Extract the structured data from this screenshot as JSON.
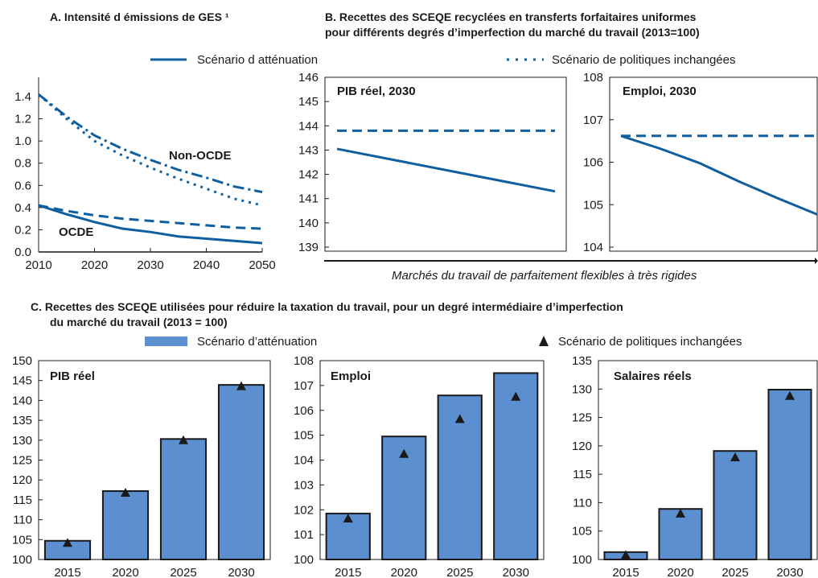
{
  "panel_a": {
    "title": "A. Intensité d émissions de GES ¹",
    "label_non_ocde": "Non-OCDE",
    "label_ocde": "OCDE"
  },
  "panel_b": {
    "title_line1": "B. Recettes des SCEQE recyclées en transferts forfaitaires uniformes",
    "title_line2": "pour différents degrés d’imperfection du marché du travail (2013=100)",
    "axis_caption": "Marchés du travail de parfaitement flexibles à très rigides"
  },
  "legend_top": {
    "mitigation": "Scénario d atténuation",
    "baseline": "Scénario de politiques inchangées"
  },
  "panel_c": {
    "title_line1": "C. Recettes des SCEQE  utilisées pour réduire la taxation du travail, pour un degré intermédiaire d’imperfection",
    "title_line2": "du marché du travail (2013 = 100)",
    "legend_mitigation": "Scénario d’atténuation",
    "legend_baseline": "Scénario de politiques inchangées"
  },
  "colors": {
    "series": "#0f5fa0",
    "bar": "#5b8fcf"
  },
  "chart_data": [
    {
      "id": "A",
      "type": "line",
      "xlim": [
        2010,
        2050
      ],
      "ylim": [
        0,
        1.4
      ],
      "xticks": [
        2010,
        2020,
        2030,
        2040,
        2050
      ],
      "yticks": [
        "0.0",
        "0.2",
        "0.4",
        "0.6",
        "0.8",
        "1.0",
        "1.2",
        "1.4"
      ],
      "x": [
        2010,
        2015,
        2020,
        2025,
        2030,
        2035,
        2040,
        2045,
        2050
      ],
      "series": [
        {
          "group": "Non-OCDE",
          "style": "dashdot",
          "values": [
            1.42,
            1.22,
            1.05,
            0.93,
            0.83,
            0.74,
            0.67,
            0.59,
            0.54
          ]
        },
        {
          "group": "Non-OCDE",
          "style": "dotted",
          "values": [
            1.42,
            1.2,
            1.0,
            0.87,
            0.76,
            0.66,
            0.57,
            0.48,
            0.42
          ]
        },
        {
          "group": "OCDE",
          "style": "dashed",
          "values": [
            0.42,
            0.37,
            0.33,
            0.3,
            0.28,
            0.26,
            0.24,
            0.22,
            0.21
          ]
        },
        {
          "group": "OCDE",
          "style": "solid",
          "values": [
            0.42,
            0.34,
            0.27,
            0.21,
            0.18,
            0.14,
            0.12,
            0.1,
            0.08
          ]
        }
      ]
    },
    {
      "id": "B1",
      "type": "line",
      "label": "PIB réel, 2030",
      "ylim": [
        139,
        146
      ],
      "yticks": [
        "139",
        "140",
        "141",
        "142",
        "143",
        "144",
        "145",
        "146"
      ],
      "x": [
        0,
        1
      ],
      "series": [
        {
          "style": "dashed",
          "values": [
            143.8,
            143.8
          ]
        },
        {
          "style": "solid",
          "values": [
            143.05,
            141.3
          ]
        }
      ]
    },
    {
      "id": "B2",
      "type": "line",
      "label": "Emploi, 2030",
      "ylim": [
        104,
        108
      ],
      "yticks": [
        "104",
        "105",
        "106",
        "107",
        "108"
      ],
      "x": [
        0,
        0.2,
        0.4,
        0.6,
        0.8,
        1.0
      ],
      "series": [
        {
          "style": "dashed",
          "values": [
            106.62,
            106.62,
            106.62,
            106.62,
            106.62,
            106.62
          ]
        },
        {
          "style": "solid",
          "values": [
            106.62,
            106.32,
            105.98,
            105.55,
            105.15,
            104.77
          ]
        }
      ]
    },
    {
      "id": "C1",
      "type": "bar",
      "label": "PIB réel",
      "categories": [
        "2015",
        "2020",
        "2025",
        "2030"
      ],
      "ylim": [
        100,
        150
      ],
      "yticks": [
        "100",
        "105",
        "110",
        "115",
        "120",
        "125",
        "130",
        "135",
        "140",
        "145",
        "150"
      ],
      "values": [
        104.7,
        117.2,
        130.3,
        143.9
      ],
      "markers": [
        104.2,
        116.8,
        130.0,
        143.6
      ]
    },
    {
      "id": "C2",
      "type": "bar",
      "label": "Emploi",
      "categories": [
        "2015",
        "2020",
        "2025",
        "2030"
      ],
      "ylim": [
        100,
        108
      ],
      "yticks": [
        "100",
        "101",
        "102",
        "103",
        "104",
        "105",
        "106",
        "107",
        "108"
      ],
      "values": [
        101.85,
        104.95,
        106.6,
        107.5
      ],
      "markers": [
        101.65,
        104.25,
        105.65,
        106.55
      ]
    },
    {
      "id": "C3",
      "type": "bar",
      "label": "Salaires réels",
      "categories": [
        "2015",
        "2020",
        "2025",
        "2030"
      ],
      "ylim": [
        100,
        135
      ],
      "yticks": [
        "100",
        "105",
        "110",
        "115",
        "120",
        "125",
        "130",
        "135"
      ],
      "values": [
        101.3,
        108.9,
        119.1,
        129.9
      ],
      "markers": [
        100.8,
        108.1,
        118.0,
        128.8
      ]
    }
  ]
}
